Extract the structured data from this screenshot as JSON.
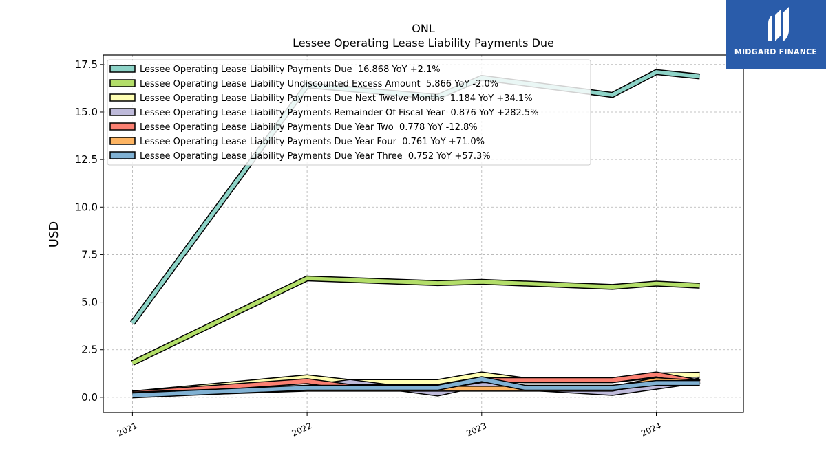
{
  "logo": {
    "text": "MIDGARD FINANCE",
    "icon": "midgard-logo-icon",
    "background": "#2a5caa"
  },
  "chart_data": {
    "type": "line",
    "title": "ONL",
    "subtitle": "Lessee Operating Lease Liability Payments Due",
    "xlabel": "",
    "ylabel": "USD",
    "x_ticks": [
      "2021",
      "2022",
      "2023",
      "2024"
    ],
    "xlim": [
      "2020-11-01",
      "2024-07-01"
    ],
    "ylim": [
      -0.8,
      18.0
    ],
    "y_ticks": [
      "0.0",
      "2.5",
      "5.0",
      "7.5",
      "10.0",
      "12.5",
      "15.0",
      "17.5"
    ],
    "grid": true,
    "legend_position": "top-left",
    "series": [
      {
        "name": "Lessee Operating Lease Liability Payments Due  16.868 YoY +2.1%",
        "color": "#8dd3c7",
        "x": [
          "2021-01-01",
          "2022-01-01",
          "2022-10-01",
          "2023-01-01",
          "2023-10-01",
          "2024-01-01",
          "2024-04-01"
        ],
        "y": [
          3.9,
          16.4,
          15.8,
          16.8,
          15.9,
          17.1,
          16.868
        ]
      },
      {
        "name": "Lessee Operating Lease Liability Undiscounted Excess Amount  5.866 YoY -2.0%",
        "color": "#b3de69",
        "x": [
          "2021-01-01",
          "2022-01-01",
          "2022-10-01",
          "2023-01-01",
          "2023-10-01",
          "2024-01-01",
          "2024-04-01"
        ],
        "y": [
          1.8,
          6.25,
          6.0,
          6.07,
          5.8,
          5.98,
          5.866
        ]
      },
      {
        "name": "Lessee Operating Lease Liability Payments Due Next Twelve Months  1.184 YoY +34.1%",
        "color": "#ffffb3",
        "x": [
          "2021-01-01",
          "2022-01-01",
          "2022-04-01",
          "2022-10-01",
          "2023-01-01",
          "2023-04-01",
          "2023-10-01",
          "2024-01-01",
          "2024-04-01"
        ],
        "y": [
          0.2,
          1.05,
          0.8,
          0.8,
          1.2,
          0.9,
          0.9,
          1.15,
          1.184
        ]
      },
      {
        "name": "Lessee Operating Lease Liability Payments Remainder Of Fiscal Year  0.876 YoY +282.5%",
        "color": "#bebada",
        "x": [
          "2021-01-01",
          "2022-01-01",
          "2022-04-01",
          "2022-10-01",
          "2023-01-01",
          "2023-04-01",
          "2023-10-01",
          "2024-01-01",
          "2024-04-01"
        ],
        "y": [
          0.2,
          0.5,
          0.8,
          0.2,
          0.7,
          0.5,
          0.23,
          0.55,
          0.876
        ]
      },
      {
        "name": "Lessee Operating Lease Liability Payments Due Year Two  0.778 YoY -12.8%",
        "color": "#fb8072",
        "x": [
          "2021-01-01",
          "2022-01-01",
          "2022-04-01",
          "2022-10-01",
          "2023-01-01",
          "2023-04-01",
          "2023-10-01",
          "2024-01-01",
          "2024-04-01"
        ],
        "y": [
          0.2,
          0.85,
          0.55,
          0.55,
          0.9,
          0.9,
          0.9,
          1.2,
          0.778
        ]
      },
      {
        "name": "Lessee Operating Lease Liability Payments Due Year Four  0.761 YoY +71.0%",
        "color": "#fdb462",
        "x": [
          "2021-01-01",
          "2022-01-01",
          "2022-04-01",
          "2022-10-01",
          "2023-01-01",
          "2023-04-01",
          "2023-10-01",
          "2024-01-01",
          "2024-04-01"
        ],
        "y": [
          0.15,
          0.45,
          0.45,
          0.45,
          0.45,
          0.45,
          0.45,
          0.9,
          0.761
        ]
      },
      {
        "name": "Lessee Operating Lease Liability Payments Due Year Three  0.752 YoY +57.3%",
        "color": "#80b1d3",
        "x": [
          "2021-01-01",
          "2022-01-01",
          "2022-04-01",
          "2022-10-01",
          "2023-01-01",
          "2023-04-01",
          "2023-10-01",
          "2024-01-01",
          "2024-04-01"
        ],
        "y": [
          0.1,
          0.5,
          0.5,
          0.5,
          0.95,
          0.5,
          0.5,
          0.75,
          0.752
        ]
      }
    ]
  }
}
